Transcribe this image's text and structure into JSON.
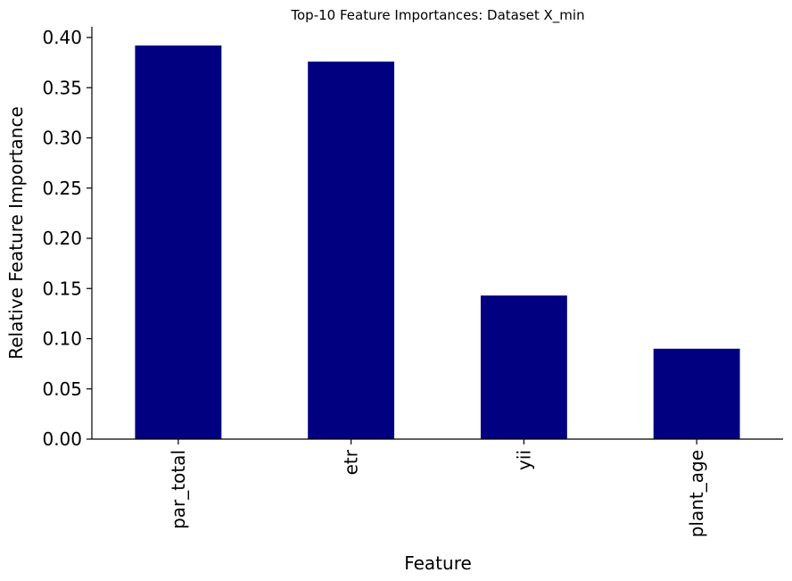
{
  "chart_data": {
    "type": "bar",
    "title": "Top-10 Feature Importances: Dataset X_min",
    "xlabel": "Feature",
    "ylabel": "Relative Feature Importance",
    "categories": [
      "par_total",
      "etr",
      "yii",
      "plant_age"
    ],
    "values": [
      0.392,
      0.376,
      0.143,
      0.09
    ],
    "ylim": [
      0,
      0.41
    ],
    "yticks": [
      "0.00",
      "0.05",
      "0.10",
      "0.15",
      "0.20",
      "0.25",
      "0.30",
      "0.35",
      "0.40"
    ],
    "bar_color": "#000080",
    "grid": false,
    "legend": "none"
  }
}
